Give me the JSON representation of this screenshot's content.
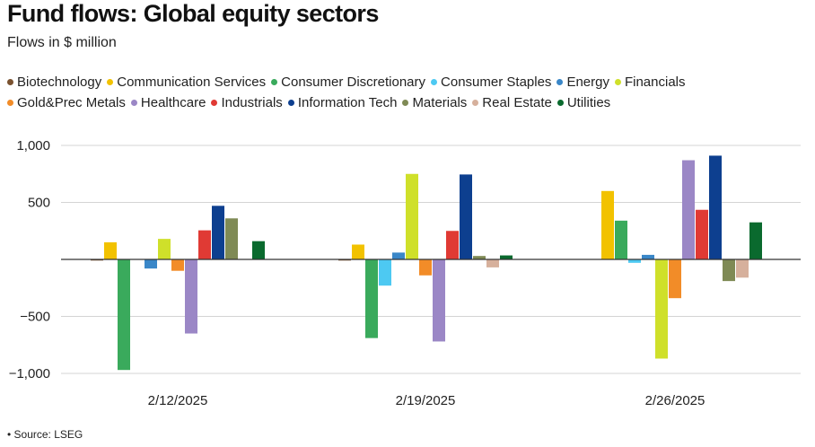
{
  "chart_data": {
    "type": "bar",
    "title": "Fund flows: Global equity sectors",
    "subtitle": "Flows in $ million",
    "categories": [
      "2/12/2025",
      "2/19/2025",
      "2/26/2025"
    ],
    "ylim": [
      -1000,
      1000
    ],
    "yticks": [
      1000,
      500,
      0,
      -500,
      -1000
    ],
    "ytick_labels": [
      "1,000",
      "500",
      "",
      "−500",
      "−1,000"
    ],
    "grid": true,
    "legend_placement": "top",
    "series": [
      {
        "name": "Biotechnology",
        "color": "#7a5230",
        "values": [
          -10,
          -10,
          0
        ]
      },
      {
        "name": "Communication Services",
        "color": "#f2c200",
        "values": [
          150,
          130,
          600
        ]
      },
      {
        "name": "Consumer Discretionary",
        "color": "#3aaa5c",
        "values": [
          -970,
          -690,
          340
        ]
      },
      {
        "name": "Consumer Staples",
        "color": "#4dc9f2",
        "values": [
          0,
          -230,
          -30
        ]
      },
      {
        "name": "Energy",
        "color": "#3a87c8",
        "values": [
          -80,
          60,
          40
        ]
      },
      {
        "name": "Financials",
        "color": "#cfe02a",
        "values": [
          180,
          750,
          -870
        ]
      },
      {
        "name": "Gold&Prec Metals",
        "color": "#f28c28",
        "values": [
          -100,
          -140,
          -340
        ]
      },
      {
        "name": "Healthcare",
        "color": "#9b87c6",
        "values": [
          -650,
          -720,
          870
        ]
      },
      {
        "name": "Industrials",
        "color": "#e03a34",
        "values": [
          255,
          250,
          435
        ]
      },
      {
        "name": "Information Tech",
        "color": "#0d3f8f",
        "values": [
          470,
          745,
          910
        ]
      },
      {
        "name": "Materials",
        "color": "#7f8a55",
        "values": [
          360,
          30,
          -190
        ]
      },
      {
        "name": "Real Estate",
        "color": "#d6b09c",
        "values": [
          0,
          -70,
          -160
        ]
      },
      {
        "name": "Utilities",
        "color": "#0a6a2e",
        "values": [
          160,
          35,
          325
        ]
      }
    ]
  },
  "source": "• Source: LSEG"
}
